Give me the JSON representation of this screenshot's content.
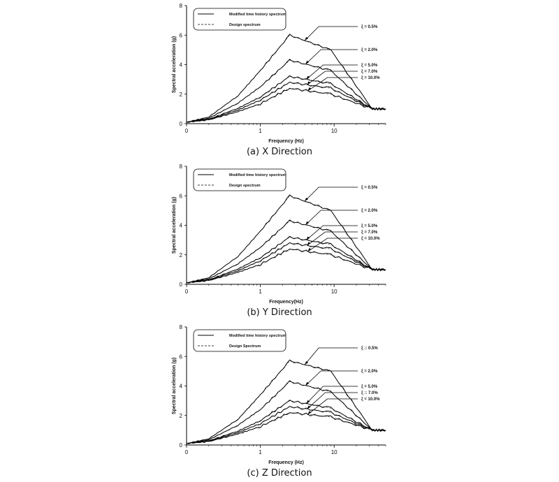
{
  "chart_data": [
    {
      "type": "line",
      "caption": "(a) X Direction",
      "xlabel": "Frequency (Hz)",
      "ylabel": "Spectral acceleration (g)",
      "xscale": "log",
      "xlim": [
        0.1,
        50
      ],
      "ylim": [
        0,
        8
      ],
      "x_tick_labels": [
        "0",
        "1",
        "10"
      ],
      "y_tick_labels": [
        "0",
        "2",
        "4",
        "6",
        "8"
      ],
      "legend": {
        "position": "top-left",
        "entries": [
          {
            "label": "Modified time history spectrum",
            "style": "solid"
          },
          {
            "label": "Design spectrum",
            "style": "dashed"
          }
        ]
      },
      "annotations": [
        "ξ = 0.5%",
        "ξ = 2.0%",
        "ξ = 5.0%",
        "ξ = 7.0%",
        "ξ = 10.0%"
      ],
      "x": [
        0.1,
        0.2,
        0.5,
        1.0,
        2.5,
        9.0,
        33.0,
        50.0
      ],
      "series": [
        {
          "damping": 0.5,
          "values": [
            0.1,
            0.45,
            1.9,
            3.6,
            6.0,
            5.0,
            1.0,
            1.0
          ]
        },
        {
          "damping": 2.0,
          "values": [
            0.1,
            0.37,
            1.4,
            2.5,
            4.3,
            3.6,
            1.0,
            1.0
          ]
        },
        {
          "damping": 5.0,
          "values": [
            0.1,
            0.3,
            1.05,
            1.8,
            3.2,
            2.7,
            1.0,
            1.0
          ]
        },
        {
          "damping": 7.0,
          "values": [
            0.1,
            0.28,
            0.93,
            1.6,
            2.8,
            2.4,
            1.0,
            1.0
          ]
        },
        {
          "damping": 10.0,
          "values": [
            0.1,
            0.25,
            0.82,
            1.35,
            2.4,
            2.0,
            1.0,
            1.0
          ]
        }
      ]
    },
    {
      "type": "line",
      "caption": "(b) Y Direction",
      "xlabel": "Frequency(Hz)",
      "ylabel": "Spectral acceleration (g)",
      "xscale": "log",
      "xlim": [
        0.1,
        50
      ],
      "ylim": [
        0,
        8
      ],
      "x_tick_labels": [
        "0",
        "1",
        "10"
      ],
      "y_tick_labels": [
        "0",
        "2",
        "4",
        "6",
        "8"
      ],
      "legend": {
        "position": "top-left",
        "entries": [
          {
            "label": "Modified time history spectrum",
            "style": "solid"
          },
          {
            "label": "Design spectrum",
            "style": "dashed"
          }
        ]
      },
      "annotations": [
        "ξ = 0.5%",
        "ξ = 2.0%",
        "ξ = 5.0%",
        "ξ = 7.0%",
        "ξ = 10.0%"
      ],
      "x": [
        0.1,
        0.2,
        0.5,
        1.0,
        2.5,
        9.0,
        33.0,
        50.0
      ],
      "series": [
        {
          "damping": 0.5,
          "values": [
            0.1,
            0.45,
            1.9,
            3.6,
            6.0,
            5.0,
            1.0,
            1.0
          ]
        },
        {
          "damping": 2.0,
          "values": [
            0.1,
            0.37,
            1.4,
            2.5,
            4.3,
            3.6,
            1.0,
            1.0
          ]
        },
        {
          "damping": 5.0,
          "values": [
            0.1,
            0.3,
            1.05,
            1.8,
            3.2,
            2.7,
            1.0,
            1.0
          ]
        },
        {
          "damping": 7.0,
          "values": [
            0.1,
            0.28,
            0.93,
            1.6,
            2.8,
            2.4,
            1.0,
            1.0
          ]
        },
        {
          "damping": 10.0,
          "values": [
            0.1,
            0.25,
            0.82,
            1.35,
            2.4,
            2.0,
            1.0,
            1.0
          ]
        }
      ]
    },
    {
      "type": "line",
      "caption": "(c) Z Direction",
      "xlabel": "Frequency (Hz)",
      "ylabel": "Spectral acceleration (g)",
      "xscale": "log",
      "xlim": [
        0.1,
        50
      ],
      "ylim": [
        0,
        8
      ],
      "x_tick_labels": [
        "0",
        "1",
        "10"
      ],
      "y_tick_labels": [
        "0",
        "2",
        "4",
        "6",
        "8"
      ],
      "legend": {
        "position": "top-left",
        "entries": [
          {
            "label": "Modified time history spectrum",
            "style": "solid"
          },
          {
            "label": "Design Spectrum",
            "style": "dashed"
          }
        ]
      },
      "annotations": [
        "ξ :: 0.5%",
        "ξ = 2.0%",
        "ξ = 5.0%",
        "ξ :: 7.0%",
        "ξ = 10.0%"
      ],
      "x": [
        0.1,
        0.2,
        0.5,
        1.0,
        2.5,
        9.0,
        33.0,
        50.0
      ],
      "series": [
        {
          "damping": 0.5,
          "values": [
            0.1,
            0.42,
            1.75,
            3.4,
            5.7,
            5.0,
            1.0,
            1.0
          ]
        },
        {
          "damping": 2.0,
          "values": [
            0.1,
            0.35,
            1.35,
            2.4,
            4.3,
            3.6,
            1.0,
            1.0
          ]
        },
        {
          "damping": 5.0,
          "values": [
            0.1,
            0.28,
            0.95,
            1.65,
            3.0,
            2.5,
            1.0,
            1.0
          ]
        },
        {
          "damping": 7.0,
          "values": [
            0.1,
            0.26,
            0.85,
            1.45,
            2.6,
            2.2,
            1.0,
            1.0
          ]
        },
        {
          "damping": 10.0,
          "values": [
            0.1,
            0.23,
            0.75,
            1.25,
            2.2,
            1.9,
            1.0,
            1.0
          ]
        }
      ]
    }
  ]
}
